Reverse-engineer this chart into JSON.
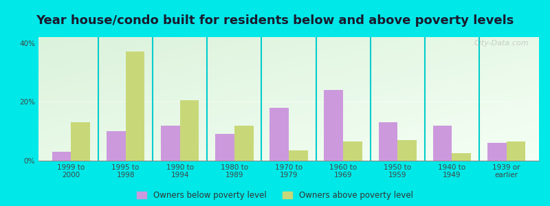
{
  "title": "Year house/condo built for residents below and above poverty levels",
  "categories": [
    "1999 to\n2000",
    "1995 to\n1998",
    "1990 to\n1994",
    "1980 to\n1989",
    "1970 to\n1979",
    "1960 to\n1969",
    "1950 to\n1959",
    "1940 to\n1949",
    "1939 or\nearlier"
  ],
  "below_poverty": [
    3.0,
    10.0,
    12.0,
    9.0,
    18.0,
    24.0,
    13.0,
    12.0,
    6.0
  ],
  "above_poverty": [
    13.0,
    37.0,
    20.5,
    12.0,
    3.5,
    6.5,
    7.0,
    2.5,
    6.5
  ],
  "below_color": "#cc99dd",
  "above_color": "#c8d878",
  "ylim": [
    0,
    42
  ],
  "yticks": [
    0,
    20,
    40
  ],
  "ytick_labels": [
    "0%",
    "20%",
    "40%"
  ],
  "outer_bg": "#00e8e8",
  "bar_width": 0.35,
  "legend_below_label": "Owners below poverty level",
  "legend_above_label": "Owners above poverty level",
  "watermark": "City-Data.com",
  "title_fontsize": 13,
  "tick_fontsize": 7.5,
  "sep_color": "#00cccc"
}
